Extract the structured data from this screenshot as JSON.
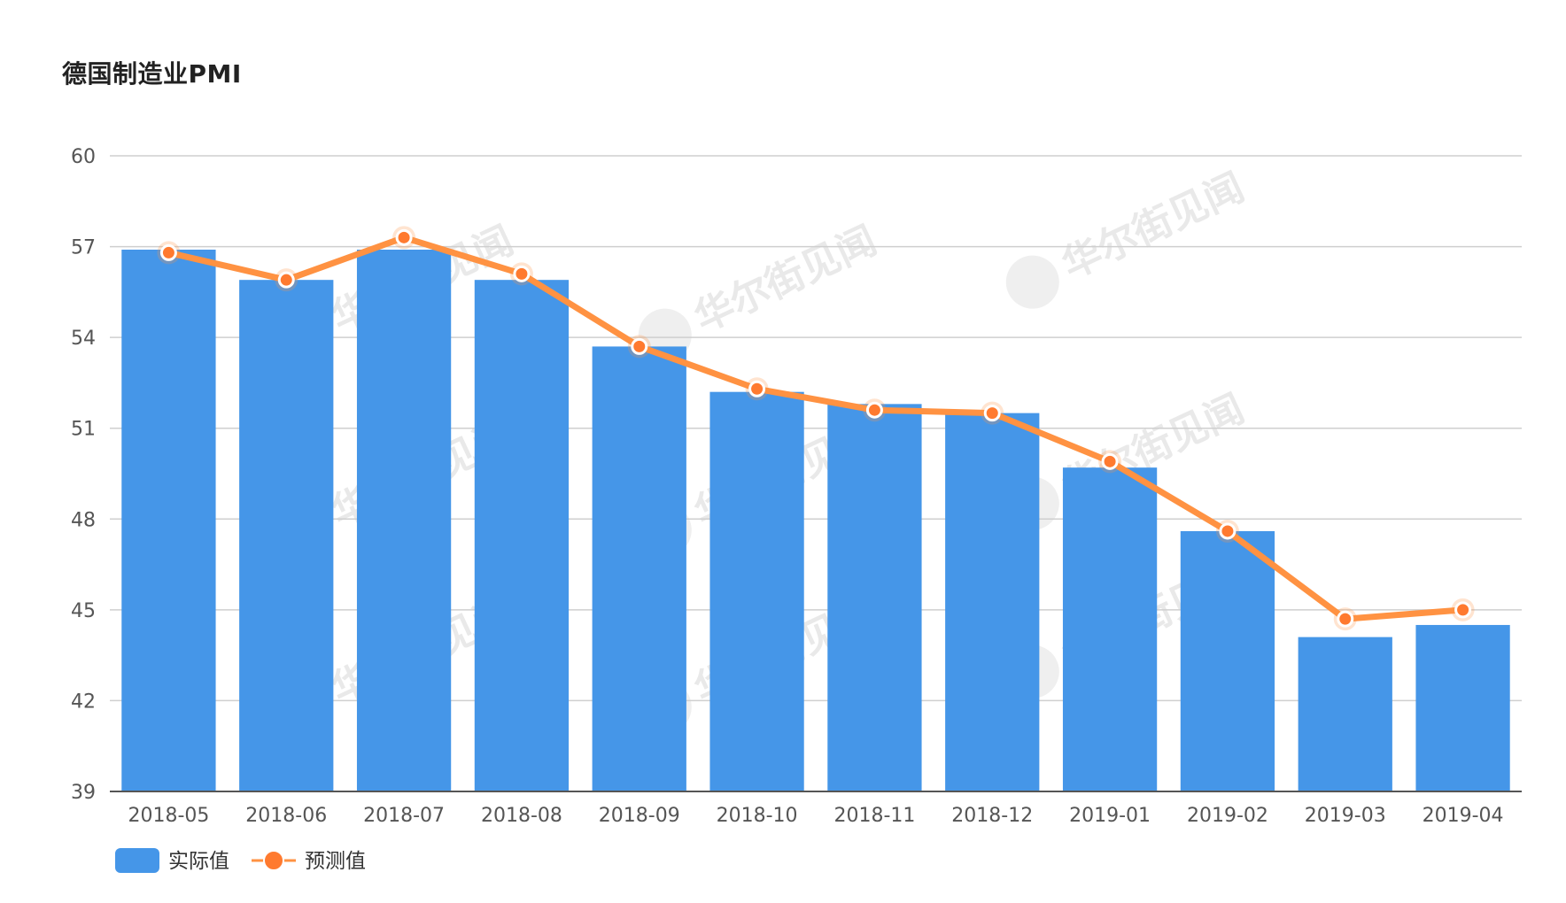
{
  "chart_data": {
    "type": "bar",
    "title": "德国制造业PMI",
    "categories": [
      "2018-05",
      "2018-06",
      "2018-07",
      "2018-08",
      "2018-09",
      "2018-10",
      "2018-11",
      "2018-12",
      "2019-01",
      "2019-02",
      "2019-03",
      "2019-04"
    ],
    "series": [
      {
        "name": "实际值",
        "type": "bar",
        "color": "#4596E8",
        "values": [
          56.9,
          55.9,
          56.9,
          55.9,
          53.7,
          52.2,
          51.8,
          51.5,
          49.7,
          47.6,
          44.1,
          44.5
        ]
      },
      {
        "name": "预测值",
        "type": "line",
        "color": "#FF9242",
        "values": [
          56.8,
          55.9,
          57.3,
          56.1,
          53.7,
          52.3,
          51.6,
          51.5,
          49.9,
          47.6,
          44.7,
          45.0
        ]
      }
    ],
    "yticks": [
      39,
      42,
      45,
      48,
      51,
      54,
      57,
      60
    ],
    "ylim": [
      39,
      60
    ],
    "grid": true,
    "legend_position": "bottom-left"
  },
  "watermark": "华尔街见闻"
}
